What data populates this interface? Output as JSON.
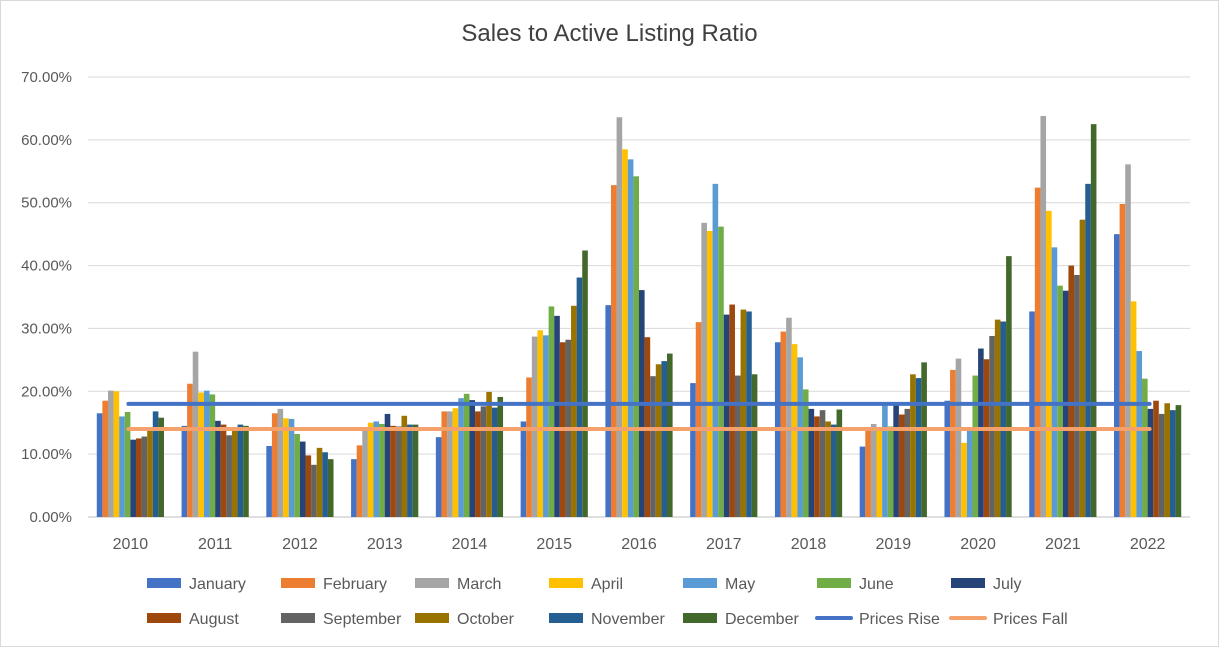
{
  "chart_data": {
    "type": "bar",
    "title": "Sales to Active Listing Ratio",
    "xlabel": "",
    "ylabel": "",
    "ylim": [
      0,
      0.7
    ],
    "yticks": [
      "0.00%",
      "10.00%",
      "20.00%",
      "30.00%",
      "40.00%",
      "50.00%",
      "60.00%",
      "70.00%"
    ],
    "grid": true,
    "legend_position": "bottom",
    "categories": [
      "2010",
      "2011",
      "2012",
      "2013",
      "2014",
      "2015",
      "2016",
      "2017",
      "2018",
      "2019",
      "2020",
      "2021",
      "2022"
    ],
    "series": [
      {
        "name": "January",
        "color": "#4472C4",
        "values": [
          0.165,
          0.145,
          0.113,
          0.092,
          0.127,
          0.152,
          0.337,
          0.213,
          0.278,
          0.112,
          0.185,
          0.327,
          0.45
        ]
      },
      {
        "name": "February",
        "color": "#ED7D31",
        "values": [
          0.185,
          0.212,
          0.165,
          0.114,
          0.168,
          0.222,
          0.528,
          0.31,
          0.295,
          0.14,
          0.234,
          0.524,
          0.498
        ]
      },
      {
        "name": "March",
        "color": "#A5A5A5",
        "values": [
          0.201,
          0.263,
          0.172,
          0.138,
          0.168,
          0.287,
          0.636,
          0.468,
          0.317,
          0.148,
          0.252,
          0.638,
          0.561
        ]
      },
      {
        "name": "April",
        "color": "#FFC000",
        "values": [
          0.2,
          0.198,
          0.157,
          0.15,
          0.173,
          0.297,
          0.585,
          0.455,
          0.275,
          0.142,
          0.118,
          0.487,
          0.343
        ]
      },
      {
        "name": "May",
        "color": "#5B9BD5",
        "values": [
          0.16,
          0.201,
          0.156,
          0.152,
          0.189,
          0.289,
          0.569,
          0.53,
          0.254,
          0.178,
          0.137,
          0.429,
          0.264
        ]
      },
      {
        "name": "June",
        "color": "#70AD47",
        "values": [
          0.167,
          0.195,
          0.132,
          0.148,
          0.196,
          0.335,
          0.542,
          0.462,
          0.203,
          0.144,
          0.225,
          0.368,
          0.22
        ]
      },
      {
        "name": "July",
        "color": "#264478",
        "values": [
          0.123,
          0.153,
          0.12,
          0.164,
          0.186,
          0.32,
          0.361,
          0.322,
          0.172,
          0.178,
          0.268,
          0.36,
          0.172
        ]
      },
      {
        "name": "August",
        "color": "#9E480E",
        "values": [
          0.125,
          0.147,
          0.098,
          0.145,
          0.168,
          0.278,
          0.286,
          0.338,
          0.16,
          0.163,
          0.251,
          0.4,
          0.185
        ]
      },
      {
        "name": "September",
        "color": "#636363",
        "values": [
          0.128,
          0.13,
          0.083,
          0.144,
          0.176,
          0.282,
          0.224,
          0.225,
          0.17,
          0.172,
          0.288,
          0.385,
          0.164
        ]
      },
      {
        "name": "October",
        "color": "#997300",
        "values": [
          0.142,
          0.141,
          0.11,
          0.161,
          0.199,
          0.336,
          0.243,
          0.33,
          0.152,
          0.227,
          0.314,
          0.473,
          0.181
        ]
      },
      {
        "name": "November",
        "color": "#255E91",
        "values": [
          0.168,
          0.147,
          0.103,
          0.147,
          0.174,
          0.381,
          0.248,
          0.327,
          0.147,
          0.221,
          0.311,
          0.53,
          0.17
        ]
      },
      {
        "name": "December",
        "color": "#43682B",
        "values": [
          0.158,
          0.145,
          0.092,
          0.147,
          0.191,
          0.424,
          0.26,
          0.227,
          0.171,
          0.246,
          0.415,
          0.625,
          0.178
        ]
      }
    ],
    "lines": [
      {
        "name": "Prices Rise",
        "color": "#4472C4",
        "value": 0.18
      },
      {
        "name": "Prices Fall",
        "color": "#F4A16B",
        "value": 0.14
      }
    ]
  }
}
